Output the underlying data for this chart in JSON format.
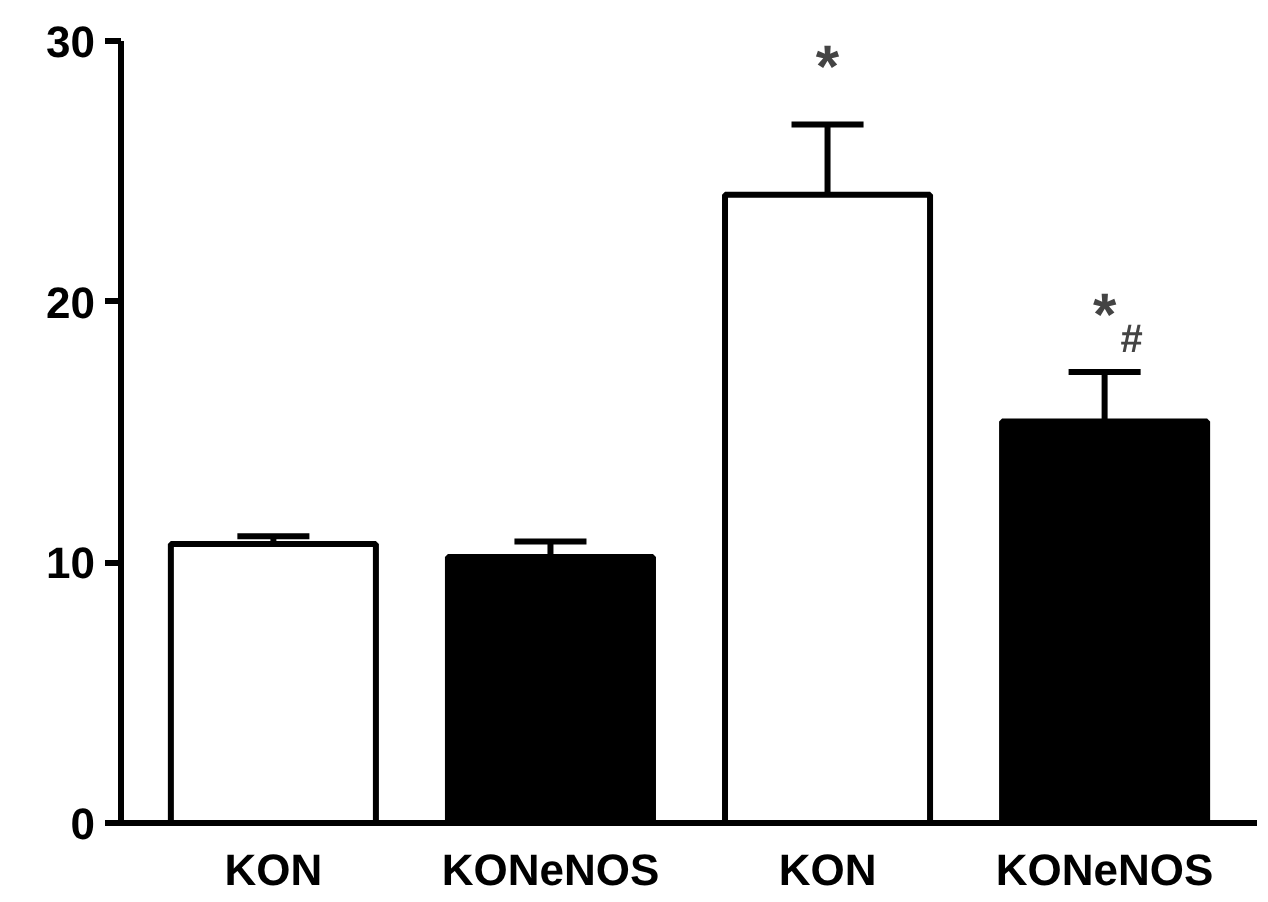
{
  "chart_data": {
    "type": "bar",
    "categories": [
      "KON",
      "KONeNOS",
      "KON",
      "KONeNOS"
    ],
    "values": [
      10.7,
      10.2,
      24.1,
      15.4
    ],
    "colors": [
      "#ffffff",
      "#000000",
      "#ffffff",
      "#000000"
    ],
    "errors": [
      [
        10.7,
        11.0
      ],
      [
        10.2,
        10.8
      ],
      [
        24.1,
        26.8
      ],
      [
        15.4,
        17.3
      ]
    ],
    "ylim": [
      0,
      30
    ],
    "yticks": [
      0,
      10,
      20,
      30
    ],
    "grid": false,
    "annotations": [
      "*",
      "*",
      "#"
    ]
  }
}
